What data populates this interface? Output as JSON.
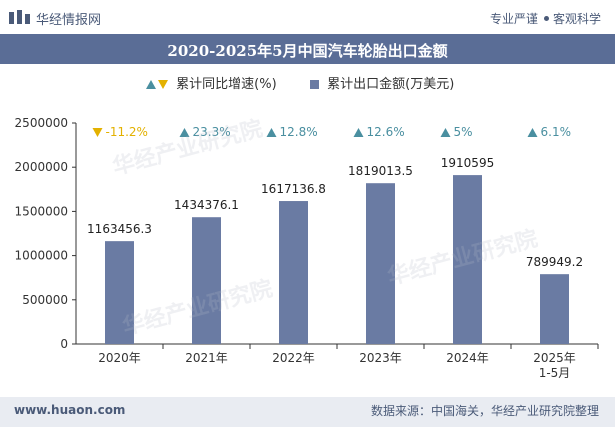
{
  "header": {
    "brand": "华经情报网",
    "slogan_left": "专业严谨",
    "slogan_right": "客观科学"
  },
  "title": "2020-2025年5月中国汽车轮胎出口金额",
  "legend": {
    "growth_label": "累计同比增速(%)",
    "value_label": "累计出口金额(万美元)"
  },
  "colors": {
    "bar": "#6a7ba3",
    "up": "#4a8fa0",
    "down": "#e3b100",
    "title_bg": "#5a6d96"
  },
  "chart_data": {
    "type": "bar",
    "categories": [
      "2020年",
      "2021年",
      "2022年",
      "2023年",
      "2024年",
      "2025年\n1-5月"
    ],
    "series": [
      {
        "name": "累计出口金额(万美元)",
        "values": [
          1163456.3,
          1434376.1,
          1617136.8,
          1819013.5,
          1910595,
          789949.2
        ],
        "labels": [
          "1163456.3",
          "1434376.1",
          "1617136.8",
          "1819013.5",
          "1910595",
          "789949.2"
        ]
      },
      {
        "name": "累计同比增速(%)",
        "values": [
          -11.2,
          23.3,
          12.8,
          12.6,
          5,
          6.1
        ],
        "labels": [
          "-11.2%",
          "23.3%",
          "12.8%",
          "12.6%",
          "5%",
          "6.1%"
        ]
      }
    ],
    "ylim": [
      0,
      2500000
    ],
    "yticks": [
      0,
      500000,
      1000000,
      1500000,
      2000000,
      2500000
    ],
    "ytick_labels": [
      "0",
      "500000",
      "1000000",
      "1500000",
      "2000000",
      "2500000"
    ],
    "legend_position": "top",
    "grid": false
  },
  "watermark": "华经产业研究院",
  "footer": {
    "site": "www.huaon.com",
    "source": "数据来源：中国海关，华经产业研究院整理"
  }
}
